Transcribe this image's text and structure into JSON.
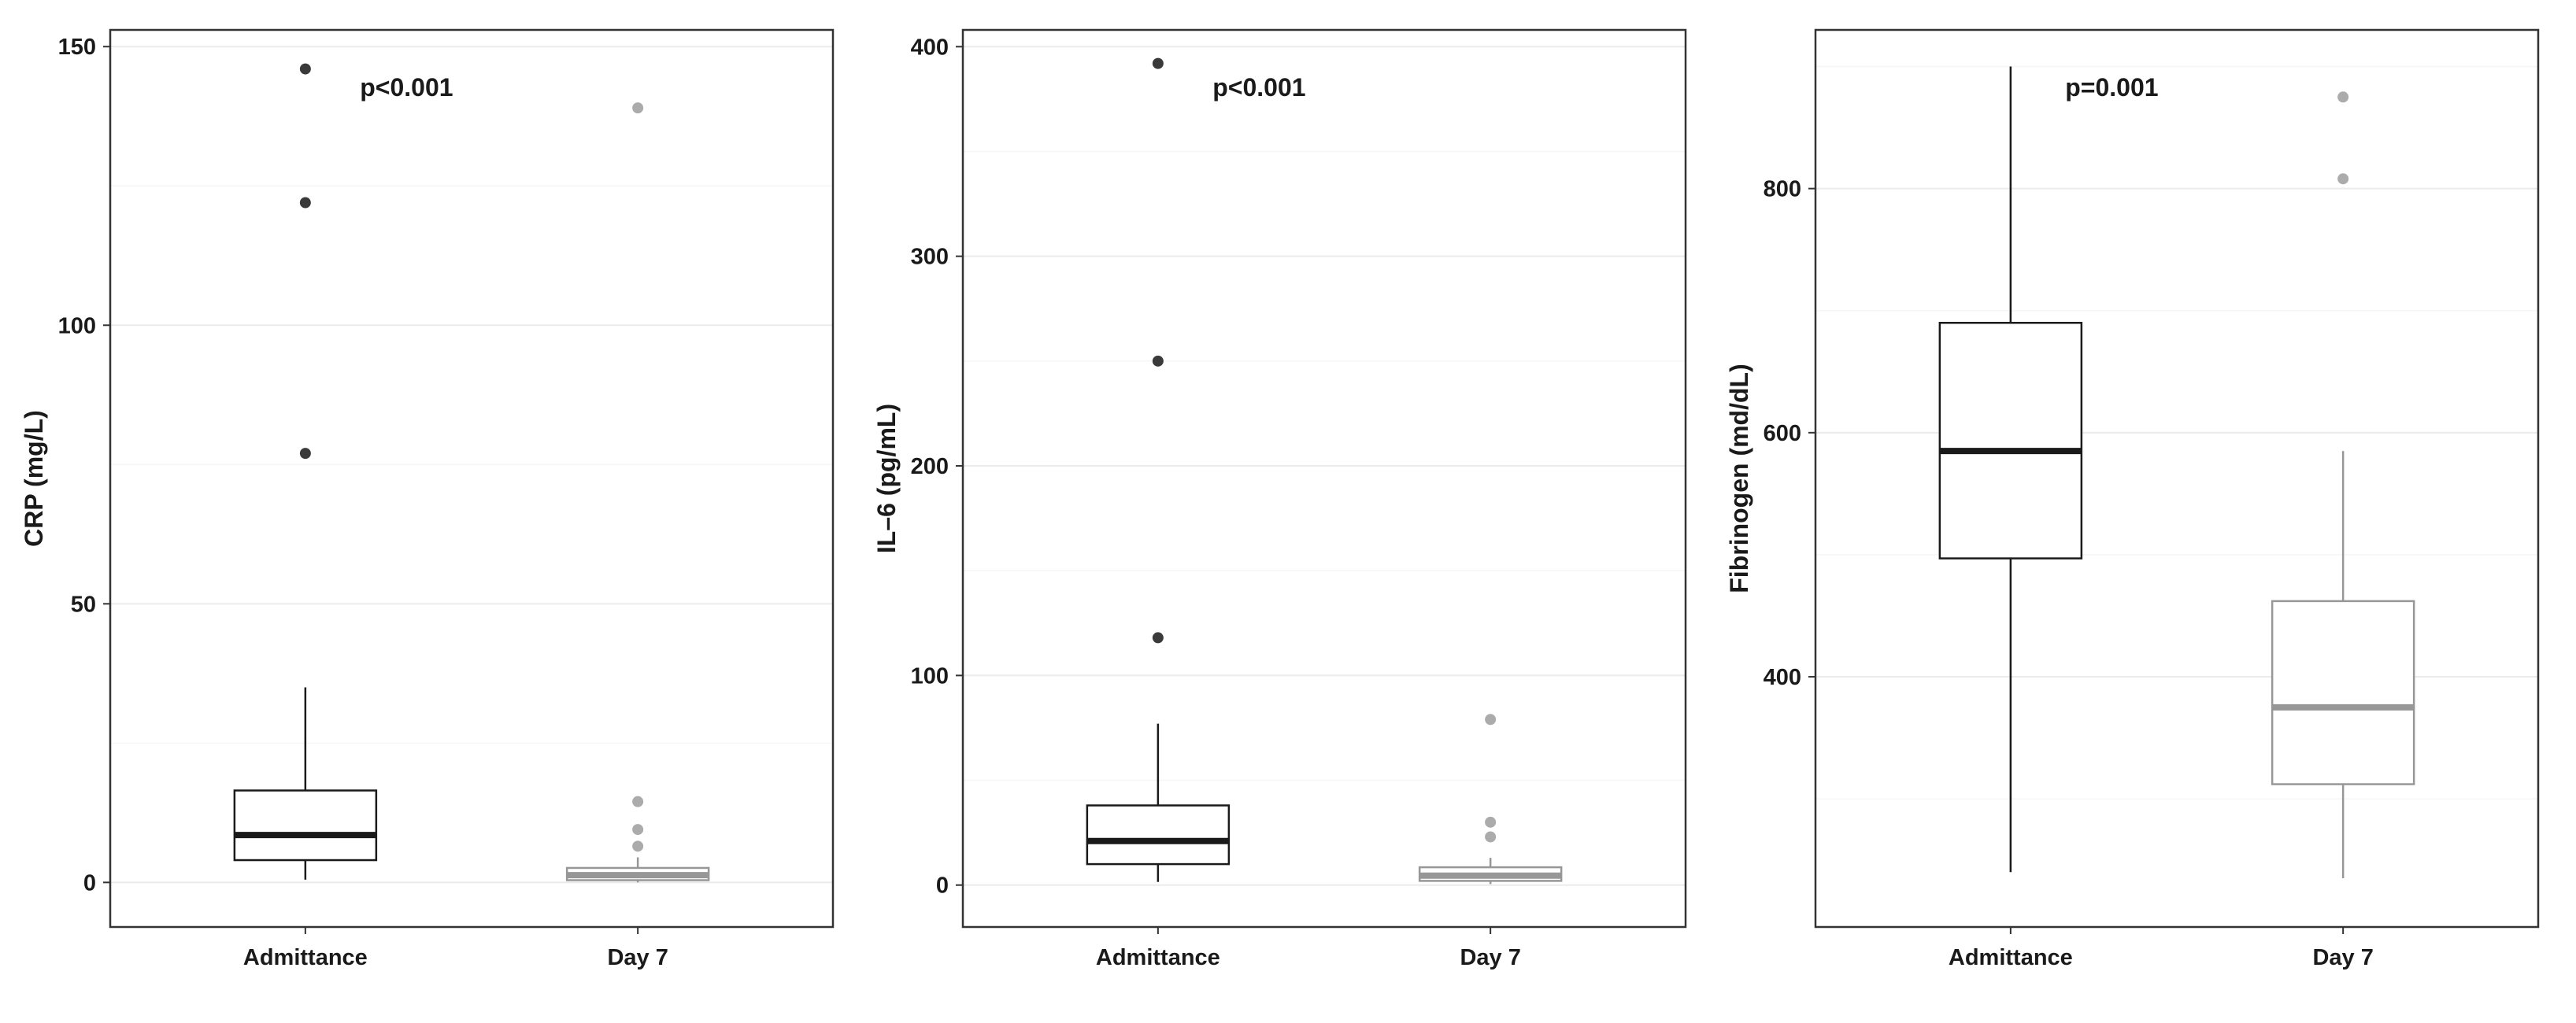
{
  "figure": {
    "background": "#ffffff",
    "panel_background": "#ffffff",
    "panel_border_color": "#333333",
    "grid_major_color": "#ebebeb",
    "grid_minor_color": "#f6f6f6",
    "tick_color": "#333333",
    "text_color": "#1a1a1a"
  },
  "chart_data": [
    {
      "type": "boxplot",
      "id": "crp",
      "ylabel": "CRP (mg/L)",
      "annotation": "p<0.001",
      "categories": [
        "Admittance",
        "Day 7"
      ],
      "yticks": [
        0,
        50,
        100,
        150
      ],
      "ylim": [
        -8,
        153
      ],
      "groups": [
        {
          "label": "Admittance",
          "color": "#1a1a1a",
          "outlier_color": "#3a3a3a",
          "whisker_low": 0.5,
          "q1": 4,
          "median": 8.5,
          "q3": 16.5,
          "whisker_high": 35,
          "outliers": [
            77,
            122,
            146
          ]
        },
        {
          "label": "Day 7",
          "color": "#979797",
          "outlier_color": "#ababab",
          "whisker_low": 0,
          "q1": 0.4,
          "median": 1.3,
          "q3": 2.6,
          "whisker_high": 4.5,
          "outliers": [
            6.5,
            9.5,
            14.5,
            139
          ]
        }
      ]
    },
    {
      "type": "boxplot",
      "id": "il6",
      "ylabel": "IL–6 (pg/mL)",
      "annotation": "p<0.001",
      "categories": [
        "Admittance",
        "Day 7"
      ],
      "yticks": [
        0,
        100,
        200,
        300,
        400
      ],
      "ylim": [
        -20,
        408
      ],
      "groups": [
        {
          "label": "Admittance",
          "color": "#1a1a1a",
          "outlier_color": "#3a3a3a",
          "whisker_low": 1.5,
          "q1": 10,
          "median": 21,
          "q3": 38,
          "whisker_high": 77,
          "outliers": [
            118,
            250,
            392
          ]
        },
        {
          "label": "Day 7",
          "color": "#979797",
          "outlier_color": "#ababab",
          "whisker_low": 0.5,
          "q1": 2,
          "median": 4.5,
          "q3": 8.5,
          "whisker_high": 13,
          "outliers": [
            23,
            30,
            79
          ]
        }
      ]
    },
    {
      "type": "boxplot",
      "id": "fibrinogen",
      "ylabel": "Fibrinogen (md/dL)",
      "annotation": "p=0.001",
      "categories": [
        "Admittance",
        "Day 7"
      ],
      "yticks": [
        400,
        600,
        800
      ],
      "ylim": [
        195,
        930
      ],
      "groups": [
        {
          "label": "Admittance",
          "color": "#1a1a1a",
          "outlier_color": "#3a3a3a",
          "whisker_low": 240,
          "q1": 497,
          "median": 585,
          "q3": 690,
          "whisker_high": 900,
          "outliers": []
        },
        {
          "label": "Day 7",
          "color": "#979797",
          "outlier_color": "#ababab",
          "whisker_low": 235,
          "q1": 312,
          "median": 375,
          "q3": 462,
          "whisker_high": 585,
          "outliers": [
            808,
            875
          ]
        }
      ]
    }
  ]
}
